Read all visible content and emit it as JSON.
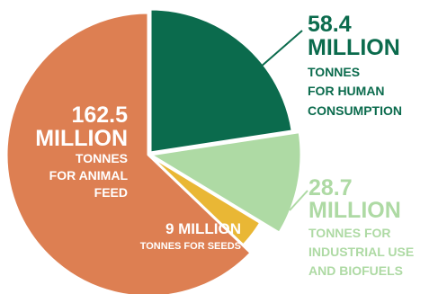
{
  "chart_data": {
    "type": "pie",
    "title": "",
    "unit": "million tonnes",
    "slices": [
      {
        "label_value": "162.5",
        "label_unit": "MILLION",
        "label_desc": [
          "TONNES",
          "FOR ANIMAL",
          "FEED"
        ],
        "value": 162.5,
        "color": "#DD7F52"
      },
      {
        "label_value": "58.4",
        "label_unit": "MILLION",
        "label_desc": [
          "TONNES",
          "FOR HUMAN",
          "CONSUMPTION"
        ],
        "value": 58.4,
        "color": "#0B6B4D"
      },
      {
        "label_value": "28.7",
        "label_unit": "MILLION",
        "label_desc": [
          "TONNES FOR",
          "INDUSTRIAL USE",
          "AND BIOFUELS"
        ],
        "value": 28.7,
        "color": "#AEDAA4"
      },
      {
        "label_value": "9 MILLION",
        "label_unit": "",
        "label_desc": [
          "TONNES FOR SEEDS"
        ],
        "value": 9,
        "color": "#E9B735"
      }
    ]
  }
}
